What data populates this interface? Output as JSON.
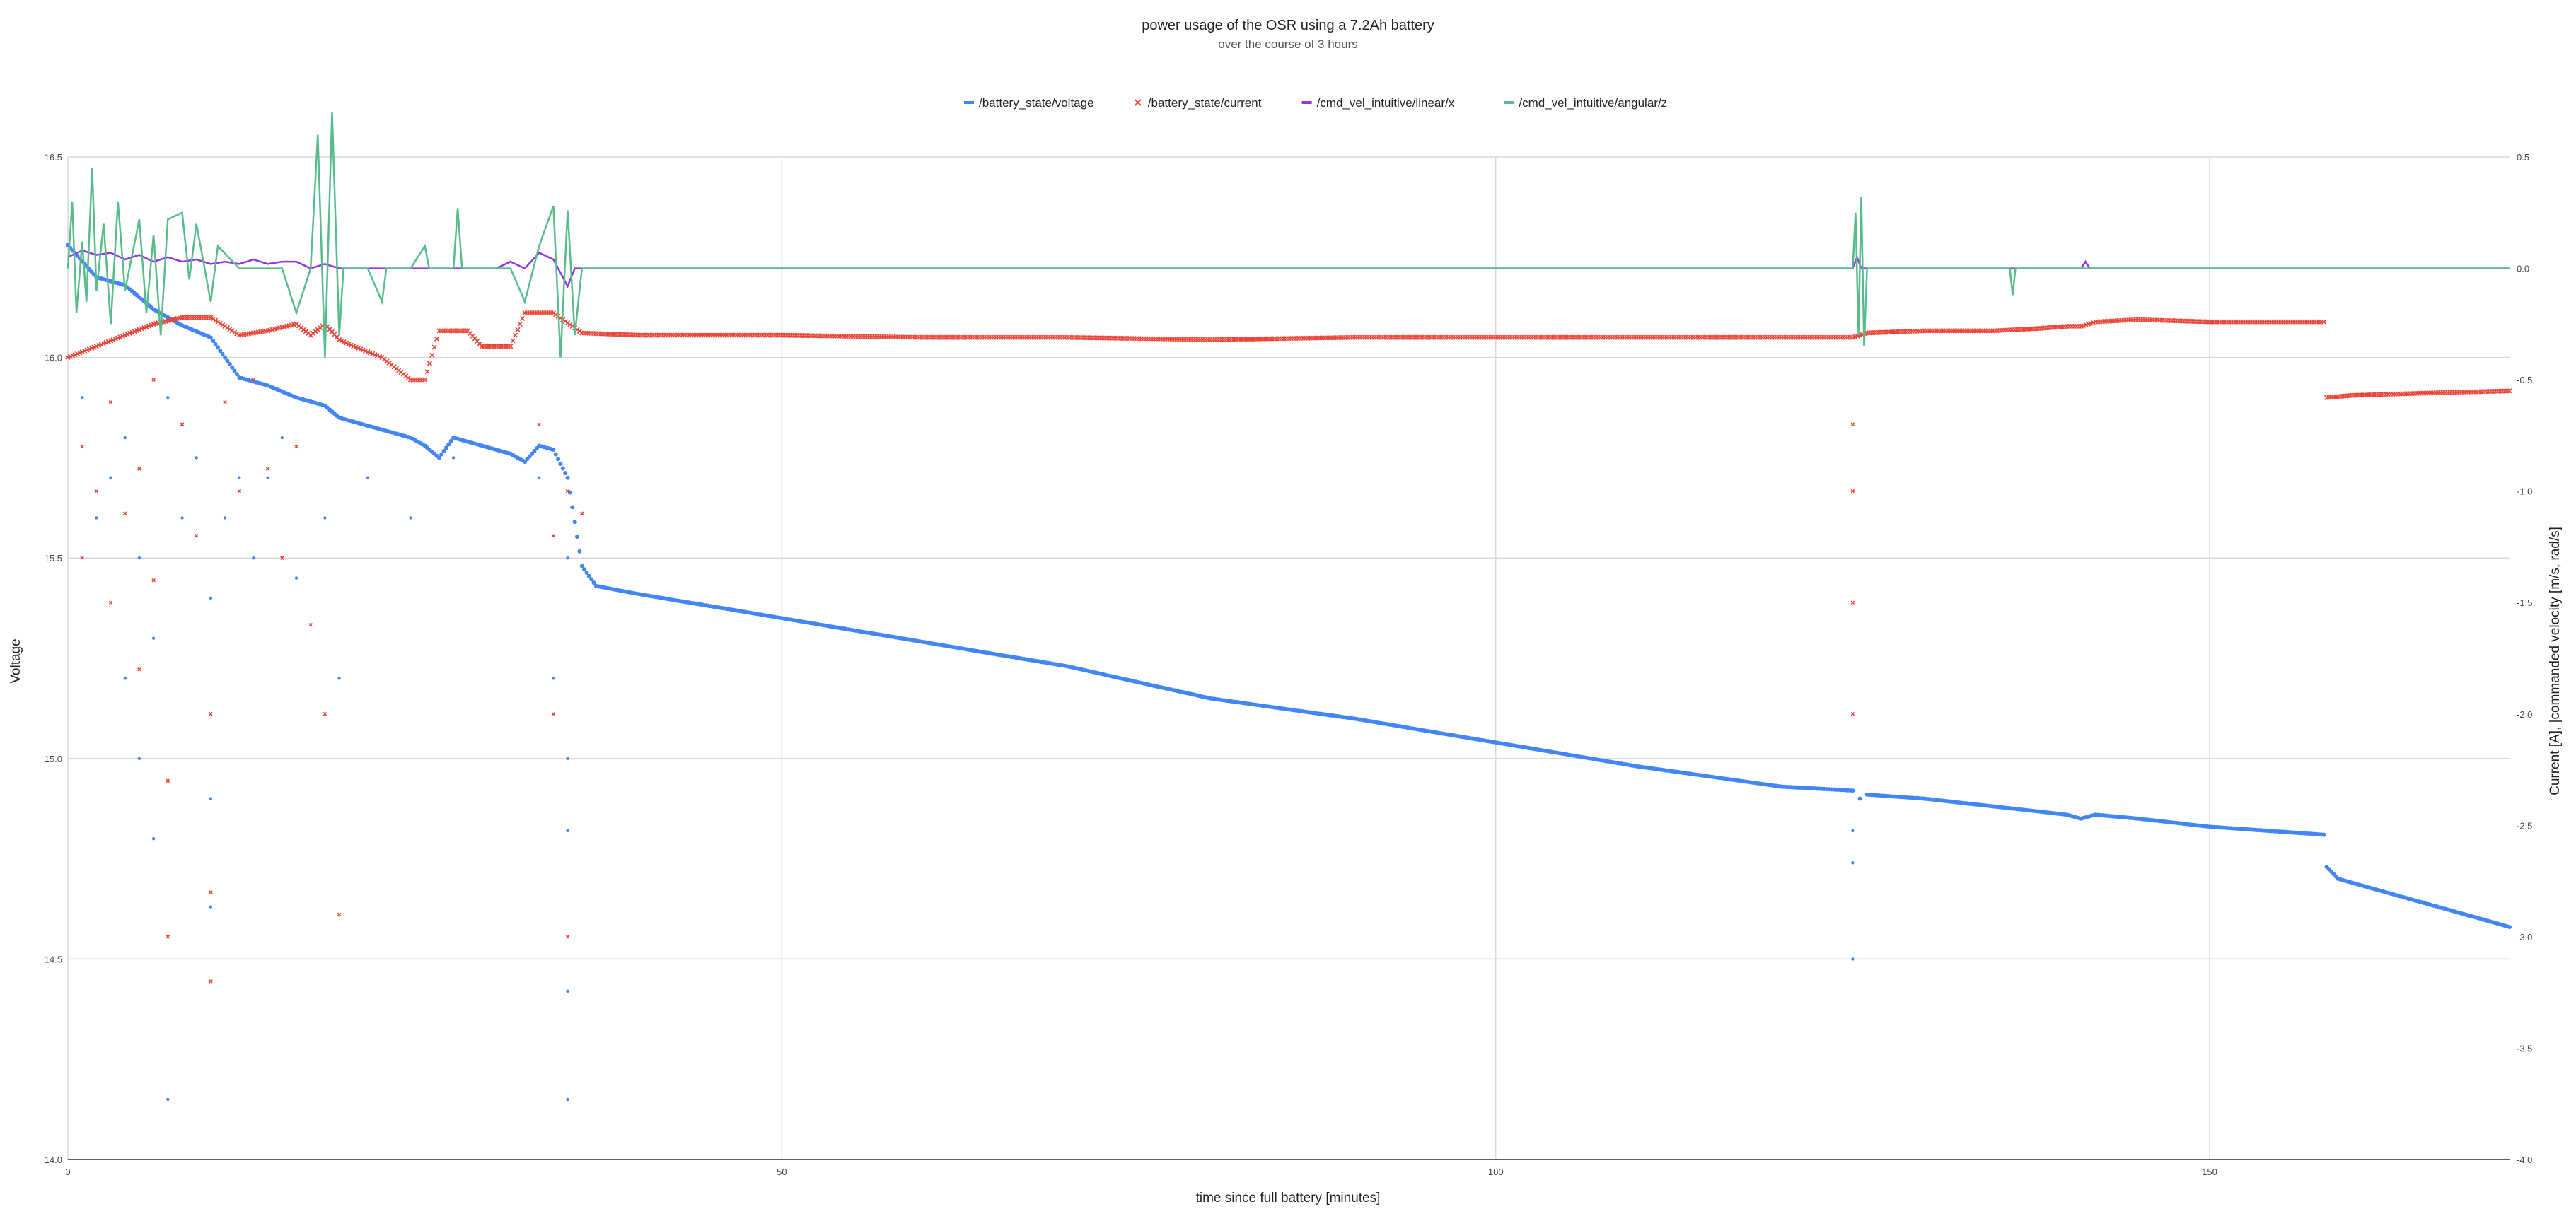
{
  "chart_data": {
    "type": "scatter",
    "title": "power usage of the OSR using a 7.2Ah battery",
    "subtitle": "over the course of 3 hours",
    "xlabel": "time since full battery [minutes]",
    "ylabel_left": "Voltage",
    "ylabel_right": "Current [A], |commanded velocity [m/s, rad/s]",
    "xlim": [
      0,
      171
    ],
    "ylim_left": [
      14.0,
      16.5
    ],
    "ylim_right": [
      -4.0,
      0.5
    ],
    "x_ticks": [
      0,
      50,
      100,
      150
    ],
    "x_tick_labels": [
      "0",
      "50",
      "100",
      "150"
    ],
    "y_left_ticks": [
      14.0,
      14.5,
      15.0,
      15.5,
      16.0,
      16.5
    ],
    "y_left_tick_labels": [
      "14.0",
      "14.5",
      "15.0",
      "15.5",
      "16.0",
      "16.5"
    ],
    "y_right_ticks": [
      -4.0,
      -3.5,
      -3.0,
      -2.5,
      -2.0,
      -1.5,
      -1.0,
      -0.5,
      0.0,
      0.5
    ],
    "y_right_tick_labels": [
      "-4.0",
      "-3.5",
      "-3.0",
      "-2.5",
      "-2.0",
      "-1.5",
      "-1.0",
      "-0.5",
      "0.0",
      "0.5"
    ],
    "grid": true,
    "legend_position": "top-center",
    "series": [
      {
        "name": "/battery_state/voltage",
        "axis": "left",
        "marker": "dot",
        "color": "#4285f4",
        "points": [
          [
            0,
            16.28
          ],
          [
            2,
            16.2
          ],
          [
            4,
            16.18
          ],
          [
            6,
            16.12
          ],
          [
            8,
            16.08
          ],
          [
            10,
            16.05
          ],
          [
            12,
            15.95
          ],
          [
            14,
            15.93
          ],
          [
            16,
            15.9
          ],
          [
            18,
            15.88
          ],
          [
            19,
            15.85
          ],
          [
            20,
            15.84
          ],
          [
            21,
            15.83
          ],
          [
            22,
            15.82
          ],
          [
            24,
            15.8
          ],
          [
            25,
            15.78
          ],
          [
            26,
            15.75
          ],
          [
            27,
            15.8
          ],
          [
            29,
            15.78
          ],
          [
            31,
            15.76
          ],
          [
            32,
            15.74
          ],
          [
            33,
            15.78
          ],
          [
            34,
            15.77
          ],
          [
            35,
            15.7
          ],
          [
            36,
            15.48
          ],
          [
            37,
            15.43
          ],
          [
            40,
            15.41
          ],
          [
            50,
            15.35
          ],
          [
            60,
            15.29
          ],
          [
            70,
            15.23
          ],
          [
            80,
            15.15
          ],
          [
            90,
            15.1
          ],
          [
            100,
            15.04
          ],
          [
            110,
            14.98
          ],
          [
            120,
            14.93
          ],
          [
            125,
            14.92
          ],
          [
            125.5,
            14.9
          ],
          [
            126,
            14.91
          ],
          [
            130,
            14.9
          ],
          [
            140,
            14.86
          ],
          [
            141,
            14.85
          ],
          [
            142,
            14.86
          ],
          [
            145,
            14.85
          ],
          [
            150,
            14.83
          ],
          [
            158,
            14.81
          ],
          [
            158.2,
            14.73
          ],
          [
            159,
            14.7
          ],
          [
            163,
            14.66
          ],
          [
            167,
            14.62
          ],
          [
            171,
            14.58
          ]
        ],
        "scatter_noise": [
          [
            1,
            15.9
          ],
          [
            2,
            15.6
          ],
          [
            3,
            15.7
          ],
          [
            4,
            15.8
          ],
          [
            4,
            15.2
          ],
          [
            5,
            15.5
          ],
          [
            5,
            15.0
          ],
          [
            6,
            15.3
          ],
          [
            6,
            14.8
          ],
          [
            7,
            15.9
          ],
          [
            7,
            14.15
          ],
          [
            8,
            15.6
          ],
          [
            9,
            15.75
          ],
          [
            10,
            15.4
          ],
          [
            10,
            14.9
          ],
          [
            10,
            14.63
          ],
          [
            11,
            15.6
          ],
          [
            12,
            15.7
          ],
          [
            13,
            15.5
          ],
          [
            14,
            15.7
          ],
          [
            15,
            15.8
          ],
          [
            16,
            15.45
          ],
          [
            18,
            15.6
          ],
          [
            19,
            15.2
          ],
          [
            21,
            15.7
          ],
          [
            24,
            15.6
          ],
          [
            27,
            15.75
          ],
          [
            33,
            15.7
          ],
          [
            34,
            15.2
          ],
          [
            35,
            15.5
          ],
          [
            35,
            15.0
          ],
          [
            35,
            14.82
          ],
          [
            35,
            14.42
          ],
          [
            35,
            14.15
          ],
          [
            125,
            14.82
          ],
          [
            125,
            14.74
          ],
          [
            125,
            14.5
          ]
        ]
      },
      {
        "name": "/battery_state/current",
        "axis": "right",
        "marker": "x",
        "color": "#ea4335",
        "points": [
          [
            0,
            -0.4
          ],
          [
            2,
            -0.35
          ],
          [
            4,
            -0.3
          ],
          [
            6,
            -0.25
          ],
          [
            8,
            -0.22
          ],
          [
            10,
            -0.22
          ],
          [
            12,
            -0.3
          ],
          [
            14,
            -0.28
          ],
          [
            16,
            -0.25
          ],
          [
            17,
            -0.3
          ],
          [
            18,
            -0.25
          ],
          [
            19,
            -0.32
          ],
          [
            20,
            -0.35
          ],
          [
            22,
            -0.4
          ],
          [
            24,
            -0.5
          ],
          [
            25,
            -0.5
          ],
          [
            26,
            -0.28
          ],
          [
            28,
            -0.28
          ],
          [
            29,
            -0.35
          ],
          [
            31,
            -0.35
          ],
          [
            32,
            -0.2
          ],
          [
            34,
            -0.2
          ],
          [
            36,
            -0.29
          ],
          [
            40,
            -0.3
          ],
          [
            50,
            -0.3
          ],
          [
            60,
            -0.31
          ],
          [
            70,
            -0.31
          ],
          [
            80,
            -0.32
          ],
          [
            90,
            -0.31
          ],
          [
            100,
            -0.31
          ],
          [
            110,
            -0.31
          ],
          [
            120,
            -0.31
          ],
          [
            125,
            -0.31
          ],
          [
            126,
            -0.29
          ],
          [
            130,
            -0.28
          ],
          [
            135,
            -0.28
          ],
          [
            138,
            -0.27
          ],
          [
            140,
            -0.26
          ],
          [
            141,
            -0.26
          ],
          [
            142,
            -0.24
          ],
          [
            145,
            -0.23
          ],
          [
            150,
            -0.24
          ],
          [
            158,
            -0.24
          ],
          [
            158.2,
            -0.58
          ],
          [
            160,
            -0.57
          ],
          [
            165,
            -0.56
          ],
          [
            171,
            -0.55
          ]
        ],
        "scatter_noise": [
          [
            1,
            -0.8
          ],
          [
            1,
            -1.3
          ],
          [
            2,
            -1.0
          ],
          [
            3,
            -0.6
          ],
          [
            3,
            -1.5
          ],
          [
            4,
            -1.1
          ],
          [
            5,
            -0.9
          ],
          [
            5,
            -1.8
          ],
          [
            6,
            -0.5
          ],
          [
            6,
            -1.4
          ],
          [
            7,
            -2.3
          ],
          [
            7,
            -3.0
          ],
          [
            8,
            -0.7
          ],
          [
            9,
            -1.2
          ],
          [
            10,
            -2.0
          ],
          [
            10,
            -2.8
          ],
          [
            10,
            -3.2
          ],
          [
            11,
            -0.6
          ],
          [
            12,
            -1.0
          ],
          [
            13,
            -0.5
          ],
          [
            14,
            -0.9
          ],
          [
            15,
            -1.3
          ],
          [
            16,
            -0.8
          ],
          [
            17,
            -1.6
          ],
          [
            18,
            -2.0
          ],
          [
            19,
            -2.9
          ],
          [
            33,
            -0.7
          ],
          [
            34,
            -1.2
          ],
          [
            34,
            -2.0
          ],
          [
            35,
            -1.0
          ],
          [
            35,
            -3.0
          ],
          [
            36,
            -1.1
          ],
          [
            125,
            -0.7
          ],
          [
            125,
            -1.0
          ],
          [
            125,
            -1.5
          ],
          [
            125,
            -2.0
          ]
        ]
      },
      {
        "name": "/cmd_vel_intuitive/linear/x",
        "axis": "right",
        "marker": "line",
        "color": "#9334e6",
        "points": [
          [
            0,
            0.05
          ],
          [
            1,
            0.08
          ],
          [
            2,
            0.06
          ],
          [
            3,
            0.07
          ],
          [
            4,
            0.04
          ],
          [
            5,
            0.06
          ],
          [
            6,
            0.03
          ],
          [
            7,
            0.05
          ],
          [
            8,
            0.03
          ],
          [
            9,
            0.04
          ],
          [
            10,
            0.02
          ],
          [
            11,
            0.03
          ],
          [
            12,
            0.02
          ],
          [
            13,
            0.04
          ],
          [
            14,
            0.02
          ],
          [
            15,
            0.03
          ],
          [
            16,
            0.03
          ],
          [
            17,
            0.0
          ],
          [
            18,
            0.02
          ],
          [
            19,
            0.0
          ],
          [
            20,
            0.0
          ],
          [
            30,
            0.0
          ],
          [
            31,
            0.03
          ],
          [
            32,
            0.0
          ],
          [
            33,
            0.07
          ],
          [
            34,
            0.04
          ],
          [
            35,
            -0.08
          ],
          [
            35.5,
            0.0
          ],
          [
            125,
            0.0
          ],
          [
            125.3,
            0.05
          ],
          [
            125.6,
            0.0
          ],
          [
            141,
            0.0
          ],
          [
            141.3,
            0.03
          ],
          [
            141.6,
            0.0
          ],
          [
            171,
            0.0
          ]
        ]
      },
      {
        "name": "/cmd_vel_intuitive/angular/z",
        "axis": "right",
        "marker": "line",
        "color": "#57bb8a",
        "points": [
          [
            0,
            0.0
          ],
          [
            0.3,
            0.3
          ],
          [
            0.6,
            -0.2
          ],
          [
            1,
            0.12
          ],
          [
            1.3,
            -0.15
          ],
          [
            1.7,
            0.45
          ],
          [
            2,
            -0.1
          ],
          [
            2.5,
            0.2
          ],
          [
            3,
            -0.25
          ],
          [
            3.5,
            0.3
          ],
          [
            4,
            -0.1
          ],
          [
            5,
            0.22
          ],
          [
            5.5,
            -0.2
          ],
          [
            6,
            0.15
          ],
          [
            6.5,
            -0.3
          ],
          [
            7,
            0.22
          ],
          [
            8,
            0.25
          ],
          [
            8.5,
            -0.05
          ],
          [
            9,
            0.2
          ],
          [
            10,
            -0.15
          ],
          [
            10.5,
            0.1
          ],
          [
            12,
            0.0
          ],
          [
            15,
            0.0
          ],
          [
            16,
            -0.2
          ],
          [
            17,
            0.0
          ],
          [
            17.5,
            0.6
          ],
          [
            18,
            -0.4
          ],
          [
            18.5,
            0.7
          ],
          [
            19,
            -0.3
          ],
          [
            19.3,
            0.0
          ],
          [
            21,
            0.0
          ],
          [
            22,
            -0.15
          ],
          [
            22.3,
            0.0
          ],
          [
            24,
            0.0
          ],
          [
            25,
            0.1
          ],
          [
            25.3,
            0.0
          ],
          [
            27,
            0.0
          ],
          [
            27.3,
            0.27
          ],
          [
            27.6,
            0.0
          ],
          [
            31,
            0.0
          ],
          [
            32,
            -0.15
          ],
          [
            33,
            0.1
          ],
          [
            34,
            0.28
          ],
          [
            34.5,
            -0.4
          ],
          [
            35,
            0.26
          ],
          [
            35.5,
            -0.3
          ],
          [
            36,
            0.0
          ],
          [
            125,
            0.0
          ],
          [
            125.2,
            0.25
          ],
          [
            125.4,
            -0.3
          ],
          [
            125.6,
            0.32
          ],
          [
            125.8,
            -0.35
          ],
          [
            126,
            0.0
          ],
          [
            136,
            0.0
          ],
          [
            136.2,
            -0.12
          ],
          [
            136.4,
            0.0
          ],
          [
            171,
            0.0
          ]
        ]
      }
    ]
  }
}
